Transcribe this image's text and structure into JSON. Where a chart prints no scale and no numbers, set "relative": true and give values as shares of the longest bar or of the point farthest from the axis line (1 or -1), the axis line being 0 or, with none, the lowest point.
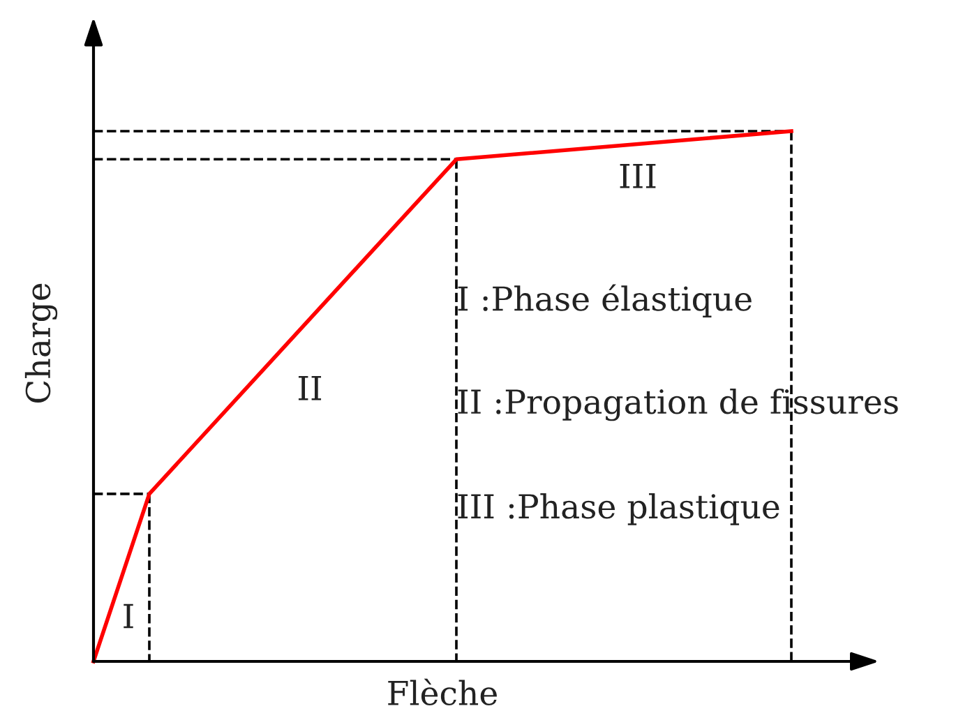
{
  "chart_data": {
    "type": "line",
    "relative": true,
    "xlabel": "Flèche",
    "ylabel": "Charge",
    "categories": [
      null,
      null,
      null,
      null,
      null,
      null,
      null,
      null,
      null,
      null,
      null,
      null,
      null,
      null,
      null,
      null,
      null,
      null,
      null,
      null,
      null,
      null,
      null,
      null,
      null,
      null
    ],
    "series": [
      {
        "color": "#ff0000",
        "line_style": "solid",
        "values": [
          0,
          null,
          0.316,
          null,
          null,
          null,
          null,
          null,
          null,
          null,
          null,
          null,
          null,
          0.947,
          null,
          null,
          null,
          null,
          null,
          null,
          null,
          null,
          null,
          null,
          null,
          1.0
        ]
      },
      {
        "color": "#000000",
        "line_style": "dashed",
        "values": [
          0.316,
          null,
          0.316,
          null,
          null,
          null,
          null,
          null,
          null,
          null,
          null,
          null,
          null,
          null,
          null,
          null,
          null,
          null,
          null,
          null,
          null,
          null,
          null,
          null,
          null,
          null
        ]
      },
      {
        "color": "#000000",
        "line_style": "dashed",
        "values": [
          0.947,
          null,
          null,
          null,
          null,
          null,
          null,
          null,
          null,
          null,
          null,
          null,
          null,
          0.947,
          null,
          null,
          null,
          null,
          null,
          null,
          null,
          null,
          null,
          null,
          null,
          null
        ]
      },
      {
        "color": "#000000",
        "line_style": "dashed",
        "values": [
          1.0,
          null,
          null,
          null,
          null,
          null,
          null,
          null,
          null,
          null,
          null,
          null,
          null,
          null,
          null,
          null,
          null,
          null,
          null,
          null,
          null,
          null,
          null,
          null,
          null,
          1.0
        ]
      }
    ],
    "annotations": [
      "I",
      "II",
      "III",
      "I :Phase élastique",
      "II :Propagation de fissures",
      "III :Phase plastique"
    ]
  }
}
